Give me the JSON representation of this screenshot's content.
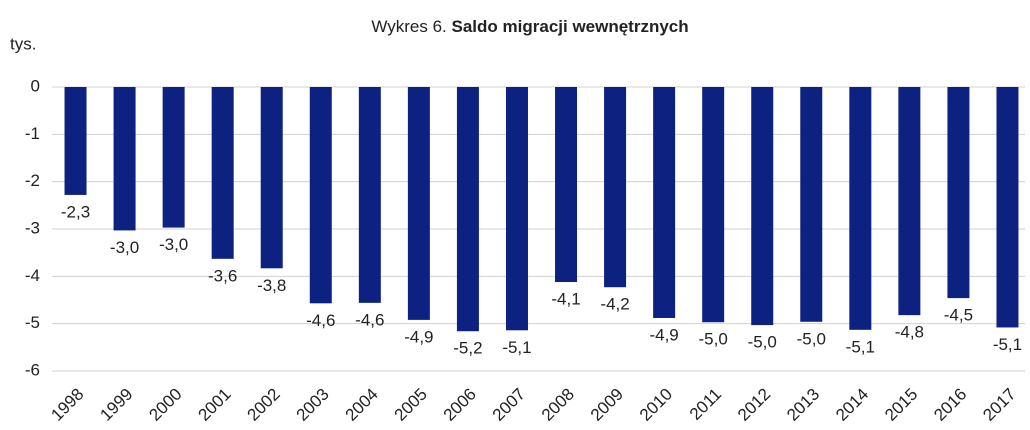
{
  "chart_data": {
    "type": "bar",
    "title_label": "Wykres 6.",
    "title": "Saldo migracji wewnętrznych",
    "y_label": "tys.",
    "categories": [
      "1998",
      "1999",
      "2000",
      "2001",
      "2002",
      "2003",
      "2004",
      "2005",
      "2006",
      "2007",
      "2008",
      "2009",
      "2010",
      "2011",
      "2012",
      "2013",
      "2014",
      "2015",
      "2016",
      "2017"
    ],
    "values": [
      -2.28,
      -3.03,
      -2.97,
      -3.63,
      -3.83,
      -4.57,
      -4.56,
      -4.92,
      -5.16,
      -5.14,
      -4.12,
      -4.23,
      -4.88,
      -4.97,
      -5.03,
      -4.96,
      -5.13,
      -4.82,
      -4.46,
      -5.08
    ],
    "value_labels": [
      "-2,3",
      "-3,0",
      "-3,0",
      "-3,6",
      "-3,8",
      "-4,6",
      "-4,6",
      "-4,9",
      "-5,2",
      "-5,1",
      "-4,1",
      "-4,2",
      "-4,9",
      "-5,0",
      "-5,0",
      "-5,0",
      "-5,1",
      "-4,8",
      "-4,5",
      "-5,1"
    ],
    "color": "#0d2280",
    "ylim": [
      -6,
      0
    ],
    "yticks": [
      0,
      -1,
      -2,
      -3,
      -4,
      -5,
      -6
    ],
    "grid": true
  }
}
